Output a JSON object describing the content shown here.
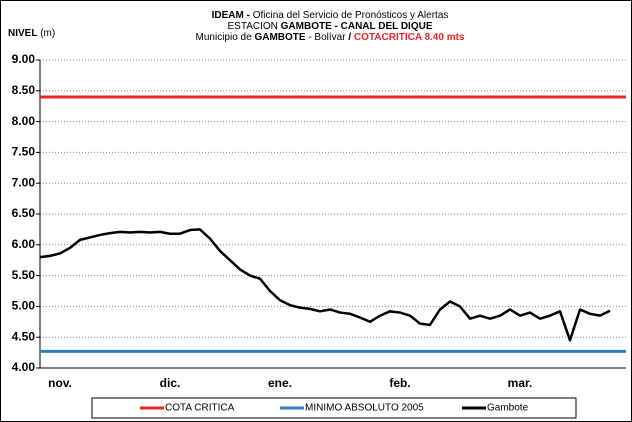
{
  "chart_data": {
    "type": "line",
    "title_lines": [
      [
        {
          "text": "IDEAM -",
          "bold": true
        },
        {
          "text": " Oficina del Servicio de Pronósticos y Alertas"
        }
      ],
      [
        {
          "text": "ESTACION "
        },
        {
          "text": "GAMBOTE -  CANAL DEL DIQUE",
          "bold": true
        }
      ],
      [
        {
          "text": "Municipio de "
        },
        {
          "text": "GAMBOTE",
          "bold": true
        },
        {
          "text": " - Bolívar "
        },
        {
          "text": " /  ",
          "bold": true
        },
        {
          "text": "COTACRITICA 8.40  mts",
          "bold": true,
          "color": "#e8262a"
        }
      ]
    ],
    "y_label": [
      {
        "text": "NIVEL",
        "bold": true
      },
      {
        "text": " (m)"
      }
    ],
    "categories": [
      null,
      null,
      "nov.",
      null,
      null,
      null,
      null,
      null,
      null,
      null,
      null,
      null,
      null,
      "dic.",
      null,
      null,
      null,
      null,
      null,
      null,
      null,
      null,
      null,
      null,
      "ene.",
      null,
      null,
      null,
      null,
      null,
      null,
      null,
      null,
      null,
      null,
      null,
      "feb.",
      null,
      null,
      null,
      null,
      null,
      null,
      null,
      null,
      null,
      null,
      null,
      "mar.",
      null,
      null,
      null,
      null,
      null,
      null,
      null,
      null,
      null
    ],
    "series": [
      {
        "name": "Gambote",
        "color": "#000000",
        "values": [
          5.8,
          5.82,
          5.86,
          5.95,
          6.08,
          6.12,
          6.16,
          6.19,
          6.21,
          6.2,
          6.21,
          6.2,
          6.21,
          6.18,
          6.18,
          6.24,
          6.25,
          6.1,
          5.9,
          5.75,
          5.6,
          5.5,
          5.45,
          5.25,
          5.1,
          5.02,
          4.98,
          4.96,
          4.92,
          4.95,
          4.9,
          4.88,
          4.82,
          4.75,
          4.85,
          4.92,
          4.9,
          4.85,
          4.72,
          4.7,
          4.95,
          5.08,
          5.0,
          4.8,
          4.85,
          4.8,
          4.85,
          4.95,
          4.85,
          4.9,
          4.8,
          4.85,
          4.92,
          4.45,
          4.95,
          4.88,
          4.85,
          4.93
        ]
      }
    ],
    "hlines": [
      {
        "name": "COTA CRITICA",
        "color": "#e8262a",
        "value": 8.4
      },
      {
        "name": "MINIMO ABSOLUTO 2005",
        "color": "#2e7fc1",
        "value": 4.27
      }
    ],
    "ylim": [
      4,
      9
    ],
    "yticks": [
      {
        "value": 4,
        "label": "4.00"
      },
      {
        "value": 4.5,
        "label": "4.50"
      },
      {
        "value": 5,
        "label": "5.00"
      },
      {
        "value": 5.5,
        "label": "5.50"
      },
      {
        "value": 6,
        "label": "6.00"
      },
      {
        "value": 6.5,
        "label": "6.50"
      },
      {
        "value": 7,
        "label": "7.00"
      },
      {
        "value": 7.5,
        "label": "7.50"
      },
      {
        "value": 8,
        "label": "8.00"
      },
      {
        "value": 8.5,
        "label": "8.50"
      },
      {
        "value": 9,
        "label": "9.00"
      }
    ],
    "grid": true,
    "legend_order": [
      "hlines.0",
      "hlines.1",
      "series.0"
    ]
  }
}
